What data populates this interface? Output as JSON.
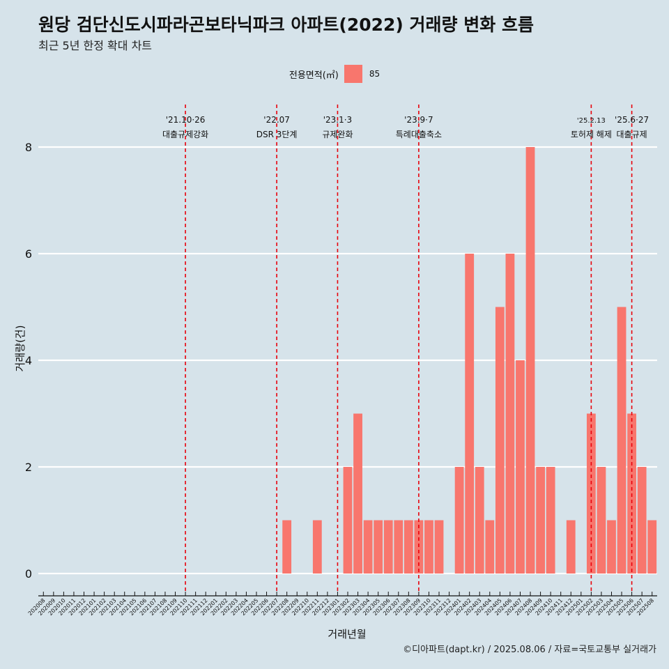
{
  "header": {
    "title": "원당 검단신도시파라곤보타닉파크 아파트(2022) 거래량 변화 흐름",
    "subtitle": "최근 5년 한정 확대 차트"
  },
  "legend": {
    "title": "전용면적(㎡)",
    "items": [
      {
        "label": "85",
        "color": "#f8766d"
      }
    ]
  },
  "caption": "©디아파트(dapt.kr) / 2025.08.06 / 자료=국토교통부 실거래가",
  "colors": {
    "background": "#d6e3ea",
    "bar": "#f8766d",
    "event_line": "#e8000b",
    "grid": "#ffffff"
  },
  "chart_data": {
    "type": "bar",
    "xlabel": "거래년월",
    "ylabel": "거래량(건)",
    "ylim": [
      0,
      8
    ],
    "yticks": [
      0,
      2,
      4,
      6,
      8
    ],
    "grid": true,
    "legend_position": "top",
    "categories": [
      "202008",
      "202009",
      "202010",
      "202011",
      "202012",
      "202101",
      "202102",
      "202103",
      "202104",
      "202105",
      "202106",
      "202107",
      "202108",
      "202109",
      "202110",
      "202111",
      "202112",
      "202201",
      "202202",
      "202203",
      "202204",
      "202205",
      "202206",
      "202207",
      "202208",
      "202209",
      "202210",
      "202211",
      "202212",
      "202301",
      "202302",
      "202303",
      "202304",
      "202305",
      "202306",
      "202307",
      "202308",
      "202309",
      "202310",
      "202311",
      "202312",
      "202401",
      "202402",
      "202403",
      "202404",
      "202405",
      "202406",
      "202407",
      "202408",
      "202409",
      "202410",
      "202411",
      "202412",
      "202501",
      "202502",
      "202503",
      "202504",
      "202505",
      "202506",
      "202507",
      "202508"
    ],
    "series": [
      {
        "name": "85",
        "values": [
          0,
          0,
          0,
          0,
          0,
          0,
          0,
          0,
          0,
          0,
          0,
          0,
          0,
          0,
          0,
          0,
          0,
          0,
          0,
          0,
          0,
          0,
          0,
          0,
          1,
          0,
          0,
          1,
          0,
          0,
          2,
          3,
          1,
          1,
          1,
          1,
          1,
          1,
          1,
          1,
          0,
          2,
          6,
          2,
          1,
          5,
          6,
          4,
          8,
          2,
          2,
          0,
          1,
          0,
          3,
          2,
          1,
          5,
          3,
          2,
          1
        ]
      }
    ],
    "events": [
      {
        "date": "2021-10-26",
        "month": "202110",
        "label_top": "'21.10·26",
        "label_bottom": "대출규제강화"
      },
      {
        "date": "2022-07",
        "month": "202207",
        "label_top": "'22.07",
        "label_bottom": "DSR 3단계"
      },
      {
        "date": "2023-01-03",
        "month": "202301",
        "label_top": "'23.1·3",
        "label_bottom": "규제완화"
      },
      {
        "date": "2023-09-07",
        "month": "202309",
        "label_top": "'23.9·7",
        "label_bottom": "특례대출축소"
      },
      {
        "date": "2025-02-13",
        "month": "202502",
        "label_top": "'25.2.13",
        "label_bottom": "토허제 해제"
      },
      {
        "date": "2025-06-27",
        "month": "202506",
        "label_top": "'25.6·27",
        "label_bottom": "대출규제"
      }
    ]
  }
}
